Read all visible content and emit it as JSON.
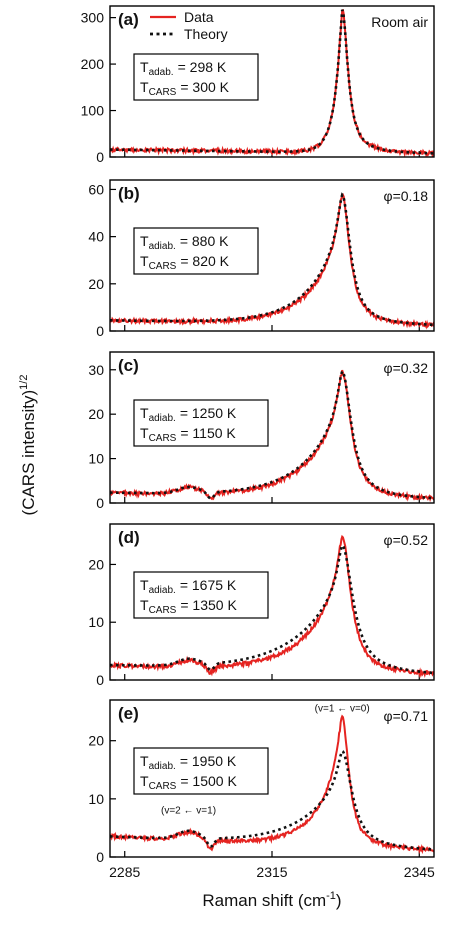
{
  "figure": {
    "ylabel": "(CARS intensity)",
    "ylabel_sup": "1/2",
    "xlabel": "Raman shift (cm",
    "xlabel_sup": "-1",
    "xlabel_end": ")",
    "legend": {
      "data_label": "Data",
      "theory_label": "Theory"
    },
    "colors": {
      "data": "#e52421",
      "theory": "#111111",
      "frame": "#000000"
    }
  },
  "chart_data": [
    {
      "type": "line",
      "panel": "(a)",
      "corner_label": "Room air",
      "T_adiab_label": "T",
      "T_adiab_sub": "adab.",
      "T_adiab_value": "= 298 K",
      "T_cars_label": "T",
      "T_cars_sub": "CARS",
      "T_cars_value": "= 300 K",
      "xlim": [
        2282,
        2348
      ],
      "ylim": [
        0,
        325
      ],
      "yticks": [
        0,
        100,
        200,
        300
      ],
      "peak_center": 2329.3,
      "data_peak": 310,
      "theory_peak": 308,
      "data_width": 1.6,
      "theory_width": 1.6,
      "baseline_left": 16,
      "baseline_right": 6,
      "dip_depth": 0,
      "series": [
        {
          "name": "Data",
          "style": "solid"
        },
        {
          "name": "Theory",
          "style": "dotted"
        }
      ]
    },
    {
      "type": "line",
      "panel": "(b)",
      "corner_label": "φ=0.18",
      "T_adiab_label": "T",
      "T_adiab_sub": "adiab.",
      "T_adiab_value": "= 880 K",
      "T_cars_label": "T",
      "T_cars_sub": "CARS",
      "T_cars_value": "= 820 K",
      "xlim": [
        2282,
        2348
      ],
      "ylim": [
        0,
        64
      ],
      "yticks": [
        0,
        20,
        40,
        60
      ],
      "peak_center": 2329.3,
      "data_peak": 55,
      "theory_peak": 55,
      "data_width": 6,
      "theory_width": 6.5,
      "baseline_left": 4.5,
      "baseline_right": 2,
      "dip_depth": 0,
      "series": [
        {
          "name": "Data",
          "style": "solid"
        },
        {
          "name": "Theory",
          "style": "dotted"
        }
      ]
    },
    {
      "type": "line",
      "panel": "(c)",
      "corner_label": "φ=0.32",
      "T_adiab_label": "T",
      "T_adiab_sub": "adiab.",
      "T_adiab_value": "= 1250 K",
      "T_cars_label": "T",
      "T_cars_sub": "CARS",
      "T_cars_value": "= 1150 K",
      "xlim": [
        2282,
        2348
      ],
      "ylim": [
        0,
        34
      ],
      "yticks": [
        0,
        10,
        20,
        30
      ],
      "peak_center": 2329.3,
      "data_peak": 28.5,
      "theory_peak": 28.5,
      "data_width": 7,
      "theory_width": 7.5,
      "baseline_left": 2.3,
      "baseline_right": 0.7,
      "dip_depth": 1.5,
      "series": [
        {
          "name": "Data",
          "style": "solid"
        },
        {
          "name": "Theory",
          "style": "dotted"
        }
      ]
    },
    {
      "type": "line",
      "panel": "(d)",
      "corner_label": "φ=0.52",
      "T_adiab_label": "T",
      "T_adiab_sub": "adiab.",
      "T_adiab_value": "= 1675 K",
      "T_cars_label": "T",
      "T_cars_sub": "CARS",
      "T_cars_value": "= 1350 K",
      "xlim": [
        2282,
        2348
      ],
      "ylim": [
        0,
        27
      ],
      "yticks": [
        0,
        10,
        20
      ],
      "peak_center": 2329.3,
      "data_peak": 23.5,
      "theory_peak": 22,
      "data_width": 7,
      "theory_width": 9,
      "baseline_left": 2.5,
      "baseline_right": 0.8,
      "dip_depth": 1.2,
      "series": [
        {
          "name": "Data",
          "style": "solid"
        },
        {
          "name": "Theory",
          "style": "dotted"
        }
      ]
    },
    {
      "type": "line",
      "panel": "(e)",
      "corner_label": "φ=0.71",
      "T_adiab_label": "T",
      "T_adiab_sub": "adiab.",
      "T_adiab_value": "= 1950 K",
      "T_cars_label": "T",
      "T_cars_sub": "CARS",
      "T_cars_value": "= 1500 K",
      "xlim": [
        2282,
        2348
      ],
      "ylim": [
        0,
        27
      ],
      "yticks": [
        0,
        10,
        20
      ],
      "xticks": [
        2285,
        2315,
        2345
      ],
      "peak_center": 2329.3,
      "data_peak": 22.5,
      "theory_peak": 16.5,
      "data_width": 5,
      "theory_width": 8,
      "baseline_left": 3.5,
      "baseline_right": 1,
      "dip_depth": 1.5,
      "annotations": [
        {
          "text": "(v=1 ← v=0)",
          "x": 2329.3,
          "y": 25
        },
        {
          "text": "(v=2 ← v=1)",
          "x": 2298,
          "y": 7.5
        }
      ],
      "series": [
        {
          "name": "Data",
          "style": "solid"
        },
        {
          "name": "Theory",
          "style": "dotted"
        }
      ]
    }
  ]
}
